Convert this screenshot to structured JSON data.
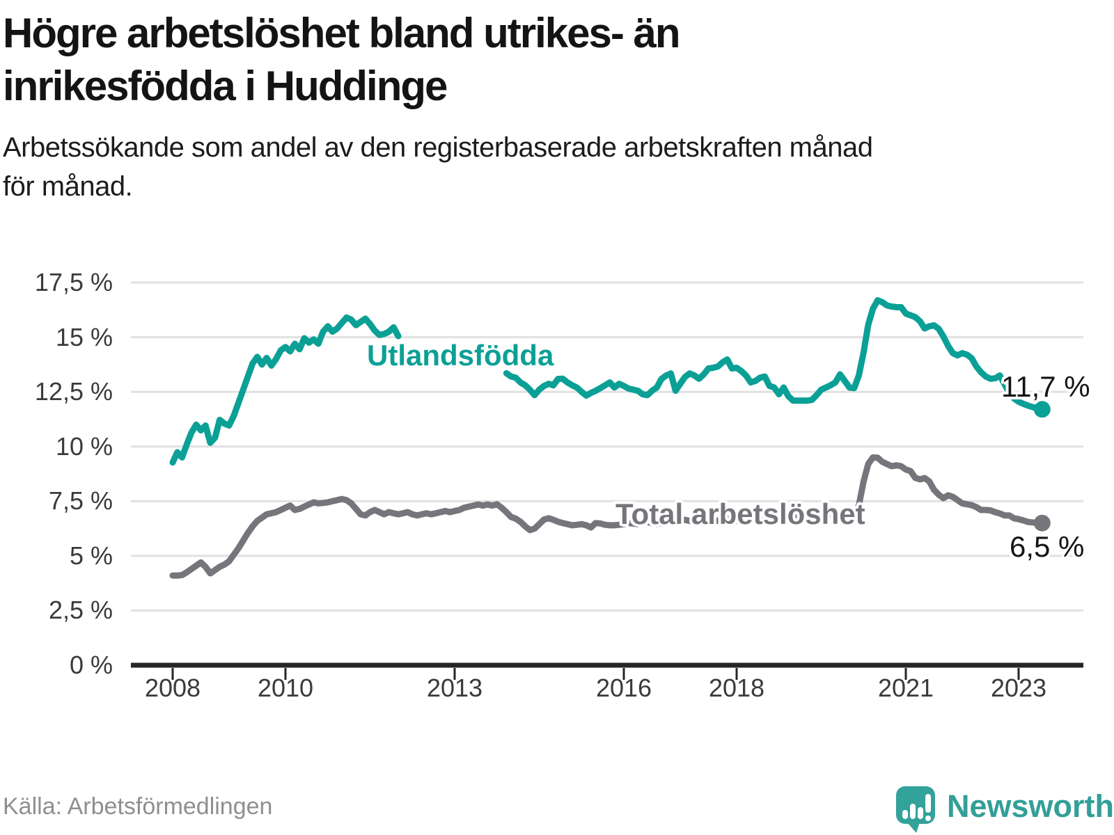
{
  "header": {
    "title_line1": "Högre arbetslöshet bland utrikes- än",
    "title_line2": "inrikesfödda i Huddinge",
    "subtitle_line1": "Arbetssökande som andel av den registerbaserade arbetskraften månad",
    "subtitle_line2": "för månad."
  },
  "footer": {
    "source": "Källa: Arbetsförmedlingen",
    "brand": "Newsworthy",
    "brand_color": "#329f98"
  },
  "chart_data": {
    "type": "line",
    "unit": "%",
    "ylim": [
      0,
      17.5
    ],
    "grid": true,
    "grid_color": "#e1e1e1",
    "axis_color": "#262626",
    "tick_label_color": "#3a3a3a",
    "y_ticks": [
      {
        "value": 17.5,
        "label": "17,5 %"
      },
      {
        "value": 15,
        "label": "15 %"
      },
      {
        "value": 12.5,
        "label": "12,5 %"
      },
      {
        "value": 10,
        "label": "10 %"
      },
      {
        "value": 7.5,
        "label": "7,5 %"
      },
      {
        "value": 5,
        "label": "5 %"
      },
      {
        "value": 2.5,
        "label": "2,5 %"
      },
      {
        "value": 0,
        "label": "0 %"
      }
    ],
    "x_ticks": [
      {
        "year": 2008,
        "label": "2008"
      },
      {
        "year": 2010,
        "label": "2010"
      },
      {
        "year": 2013,
        "label": "2013"
      },
      {
        "year": 2016,
        "label": "2016"
      },
      {
        "year": 2018,
        "label": "2018"
      },
      {
        "year": 2021,
        "label": "2021"
      },
      {
        "year": 2023,
        "label": "2023"
      }
    ],
    "series": [
      {
        "name": "Utlandsfödda",
        "color": "#0ba096",
        "end_label": "11,7 %",
        "end_value": 11.7,
        "segments": [
          {
            "start_year": 2008,
            "start_month": 1,
            "values": [
              9.27,
              9.74,
              9.5,
              10.1,
              10.64,
              11.0,
              10.74,
              10.96,
              10.17,
              10.4,
              11.22,
              11.05,
              10.96,
              11.4,
              12.0,
              12.6,
              13.2,
              13.8,
              14.1,
              13.75,
              14.05,
              13.7,
              14.0,
              14.4,
              14.55,
              14.35,
              14.7,
              14.45,
              14.95,
              14.75,
              14.9,
              14.7,
              15.25,
              15.5,
              15.25,
              15.4,
              15.65,
              15.9,
              15.8,
              15.55,
              15.7,
              15.85,
              15.6,
              15.3,
              15.1,
              15.15,
              15.25,
              15.45,
              15.05
            ]
          },
          {
            "start_year": 2013,
            "start_month": 12,
            "values": [
              13.35,
              13.2,
              13.15,
              12.93,
              12.8,
              12.6,
              12.35,
              12.6,
              12.77,
              12.87,
              12.8,
              13.09,
              13.1,
              12.93,
              12.8,
              12.7,
              12.5,
              12.33,
              12.45,
              12.55,
              12.67,
              12.8,
              12.93,
              12.7,
              12.87,
              12.77,
              12.65,
              12.6,
              12.55,
              12.39,
              12.35,
              12.55,
              12.7,
              13.09,
              13.25,
              13.34,
              12.55,
              12.87,
              13.18,
              13.34,
              13.25,
              13.1,
              13.3,
              13.57,
              13.6,
              13.66,
              13.85,
              13.98,
              13.57,
              13.6,
              13.45,
              13.25,
              12.93,
              13.0,
              13.15,
              13.2,
              12.77,
              12.7,
              12.39,
              12.7,
              12.3,
              12.1,
              12.1,
              12.1,
              12.1,
              12.13,
              12.35,
              12.6,
              12.7,
              12.8,
              12.93,
              13.3,
              13.0,
              12.7,
              12.67,
              13.25,
              14.3,
              15.57,
              16.3,
              16.69,
              16.6,
              16.45,
              16.4,
              16.37,
              16.37,
              16.08,
              16.0,
              15.92,
              15.73,
              15.4,
              15.5,
              15.54,
              15.38,
              15.03,
              14.6,
              14.27,
              14.17,
              14.27,
              14.2,
              14.04,
              13.66,
              13.4,
              13.2,
              13.1,
              13.12,
              13.25,
              12.85,
              12.45,
              12.2,
              12.05,
              11.95,
              11.87,
              11.8,
              11.74,
              11.7
            ]
          }
        ]
      },
      {
        "name": "Total arbetslöshet",
        "color": "#76757b",
        "end_label": "6,5 %",
        "end_value": 6.5,
        "segments": [
          {
            "start_year": 2008,
            "start_month": 1,
            "values": [
              4.1,
              4.1,
              4.12,
              4.25,
              4.4,
              4.55,
              4.7,
              4.5,
              4.2,
              4.35,
              4.5,
              4.6,
              4.75,
              5.05,
              5.35,
              5.7,
              6.05,
              6.35,
              6.6,
              6.75,
              6.9,
              6.95,
              7.0,
              7.1,
              7.2,
              7.3,
              7.1,
              7.15,
              7.25,
              7.35,
              7.45,
              7.4,
              7.42,
              7.45,
              7.5,
              7.55,
              7.6,
              7.55,
              7.4,
              7.15,
              6.9,
              6.85,
              7.0,
              7.1,
              7.0,
              6.9,
              7.0,
              6.95,
              6.9,
              6.95,
              7.0,
              6.9,
              6.85,
              6.9,
              6.95,
              6.9,
              6.95,
              7.0,
              7.05,
              7.0,
              7.05,
              7.1,
              7.2,
              7.25,
              7.3,
              7.35,
              7.3,
              7.35,
              7.3,
              7.36,
              7.2,
              7.0,
              6.78,
              6.7,
              6.56,
              6.35,
              6.18,
              6.25,
              6.45,
              6.66,
              6.72,
              6.65,
              6.56,
              6.5,
              6.45,
              6.4,
              6.42,
              6.45,
              6.4,
              6.3,
              6.5,
              6.48,
              6.42,
              6.4,
              6.4,
              6.42,
              6.45,
              6.5,
              6.48,
              6.45,
              6.5,
              6.55,
              6.5,
              6.45,
              6.5,
              6.55,
              6.5,
              6.55,
              6.6,
              6.65,
              6.6,
              6.55,
              6.6,
              6.65,
              6.7,
              6.65,
              6.6,
              6.65,
              6.7,
              6.65,
              6.6,
              6.65,
              6.7,
              6.65,
              6.6,
              6.65,
              6.7,
              6.75,
              6.7,
              6.65,
              6.7,
              6.75,
              6.8,
              6.75,
              6.7,
              6.75,
              6.8,
              6.85,
              6.8,
              6.85,
              6.9,
              6.85,
              6.9,
              6.9,
              6.9,
              6.88,
              7.3,
              8.4,
              9.2,
              9.5,
              9.49,
              9.3,
              9.2,
              9.1,
              9.14,
              9.1,
              8.95,
              8.88,
              8.57,
              8.5,
              8.56,
              8.4,
              8.02,
              7.8,
              7.64,
              7.77,
              7.7,
              7.55,
              7.4,
              7.36,
              7.32,
              7.23,
              7.1,
              7.1,
              7.08,
              7.0,
              6.94,
              6.85,
              6.85,
              6.72,
              6.68,
              6.62,
              6.55,
              6.53,
              6.5,
              6.5
            ]
          }
        ]
      }
    ]
  }
}
